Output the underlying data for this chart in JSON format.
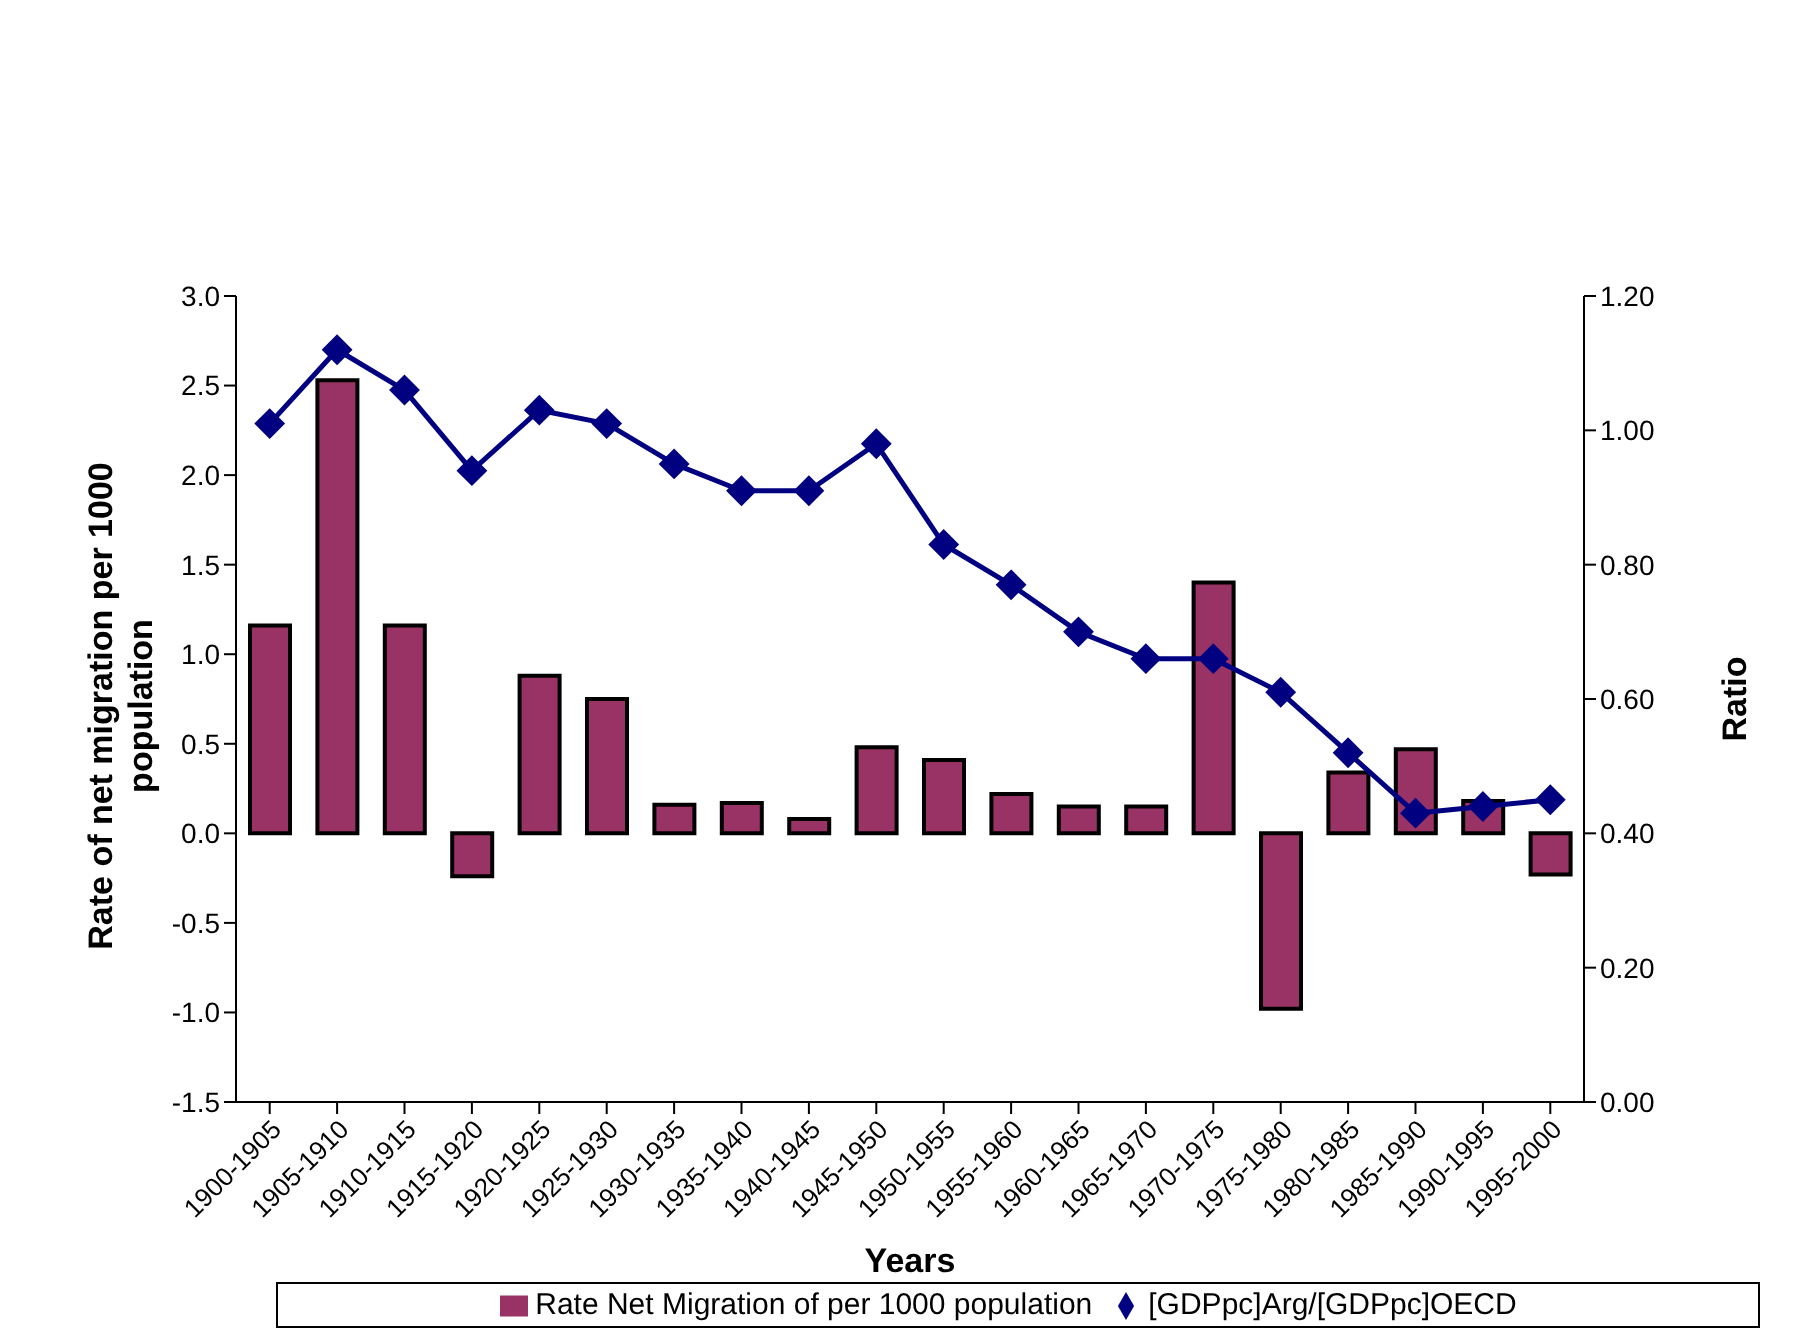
{
  "chart_data": {
    "type": "bar",
    "xlabel": "Years",
    "ylabel": "Rate of net migration per 1000 population",
    "y2label": "Ratio",
    "categories": [
      "1900-1905",
      "1905-1910",
      "1910-1915",
      "1915-1920",
      "1920-1925",
      "1925-1930",
      "1930-1935",
      "1935-1940",
      "1940-1945",
      "1945-1950",
      "1950-1955",
      "1955-1960",
      "1960-1965",
      "1965-1970",
      "1970-1975",
      "1975-1980",
      "1980-1985",
      "1985-1990",
      "1990-1995",
      "1995-2000"
    ],
    "series": [
      {
        "name": "Rate Net Migration of per 1000 population",
        "color": "#993366",
        "values": [
          1.16,
          2.53,
          1.16,
          -0.24,
          0.88,
          0.75,
          0.16,
          0.17,
          0.08,
          0.48,
          0.41,
          0.22,
          0.15,
          0.15,
          1.4,
          -0.98,
          0.34,
          0.47,
          0.18,
          -0.23
        ]
      },
      {
        "name": "[GDPpc]Arg/[GDPpc]OECD",
        "type": "line",
        "axis": "y2",
        "color": "#000080",
        "marker": "diamond",
        "values": [
          1.01,
          1.12,
          1.06,
          0.94,
          1.03,
          1.01,
          0.95,
          0.91,
          0.91,
          0.98,
          0.83,
          0.77,
          0.7,
          0.66,
          0.66,
          0.61,
          0.52,
          0.43,
          0.44,
          0.45
        ]
      }
    ],
    "ylim": [
      -1.5,
      3.0
    ],
    "yticks": [
      {
        "value": -1.5,
        "label": "-1.5"
      },
      {
        "value": -1,
        "label": "-1.0"
      },
      {
        "value": -0.5,
        "label": "-0.5"
      },
      {
        "value": 0,
        "label": "0.0"
      },
      {
        "value": 0.5,
        "label": "0.5"
      },
      {
        "value": 1,
        "label": "1.0"
      },
      {
        "value": 1.5,
        "label": "1.5"
      },
      {
        "value": 2,
        "label": "2.0"
      },
      {
        "value": 2.5,
        "label": "2.5"
      },
      {
        "value": 3,
        "label": "3.0"
      }
    ],
    "y2lim": [
      0,
      1.2
    ],
    "y2ticks": [
      {
        "value": 0,
        "label": "0.00"
      },
      {
        "value": 0.2,
        "label": "0.20"
      },
      {
        "value": 0.4,
        "label": "0.40"
      },
      {
        "value": 0.6,
        "label": "0.60"
      },
      {
        "value": 0.8,
        "label": "0.80"
      },
      {
        "value": 1,
        "label": "1.00"
      },
      {
        "value": 1.2,
        "label": "1.20"
      }
    ],
    "legend": "bottom",
    "line_style": "solid"
  }
}
